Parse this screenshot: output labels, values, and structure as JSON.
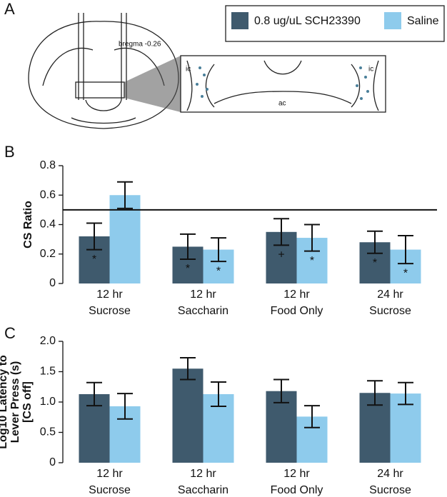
{
  "panel_labels": [
    "A",
    "B",
    "C"
  ],
  "diagram": {
    "bregma": "bregma -0.26",
    "labels": [
      "ic",
      "ic",
      "ac"
    ]
  },
  "chart_data": [
    {
      "type": "bar",
      "y_label": [
        "CS Ratio"
      ],
      "categories": [
        [
          "12 hr",
          "Sucrose"
        ],
        [
          "12 hr",
          "Saccharin"
        ],
        [
          "12 hr",
          "Food Only"
        ],
        [
          "24 hr",
          "Sucrose"
        ]
      ],
      "series": [
        {
          "name": "0.8 ug/uL SCH23390",
          "color": "#3f5a6d",
          "values": [
            0.32,
            0.25,
            0.35,
            0.28
          ],
          "errors": [
            0.09,
            0.085,
            0.09,
            0.075
          ],
          "markers": [
            "*",
            "*",
            "+",
            "*"
          ]
        },
        {
          "name": "Saline",
          "color": "#8ecbec",
          "values": [
            0.6,
            0.23,
            0.31,
            0.23
          ],
          "errors": [
            0.09,
            0.08,
            0.09,
            0.095
          ],
          "markers": [
            null,
            "*",
            "*",
            "*"
          ]
        }
      ],
      "ref_line": 0.5,
      "ylim": [
        0,
        0.8
      ],
      "yticks": [
        0,
        0.2,
        0.4,
        0.6,
        0.8
      ]
    },
    {
      "type": "bar",
      "y_label": [
        "Log10 Latency to",
        "Lever Press (s)",
        "[CS off]"
      ],
      "categories": [
        [
          "12 hr",
          "Sucrose"
        ],
        [
          "12 hr",
          "Saccharin"
        ],
        [
          "12 hr",
          "Food Only"
        ],
        [
          "24 hr",
          "Sucrose"
        ]
      ],
      "series": [
        {
          "name": "0.8 ug/uL SCH23390",
          "color": "#3f5a6d",
          "values": [
            1.13,
            1.55,
            1.18,
            1.15
          ],
          "errors": [
            0.19,
            0.18,
            0.19,
            0.2
          ]
        },
        {
          "name": "Saline",
          "color": "#8ecbec",
          "values": [
            0.93,
            1.13,
            0.76,
            1.14
          ],
          "errors": [
            0.21,
            0.2,
            0.18,
            0.18
          ]
        }
      ],
      "ylim": [
        0,
        2
      ],
      "yticks": [
        0,
        0.5,
        {
          "value": 1,
          "label": "1.0"
        },
        1.5,
        {
          "value": 2,
          "label": "2.0"
        }
      ]
    }
  ]
}
